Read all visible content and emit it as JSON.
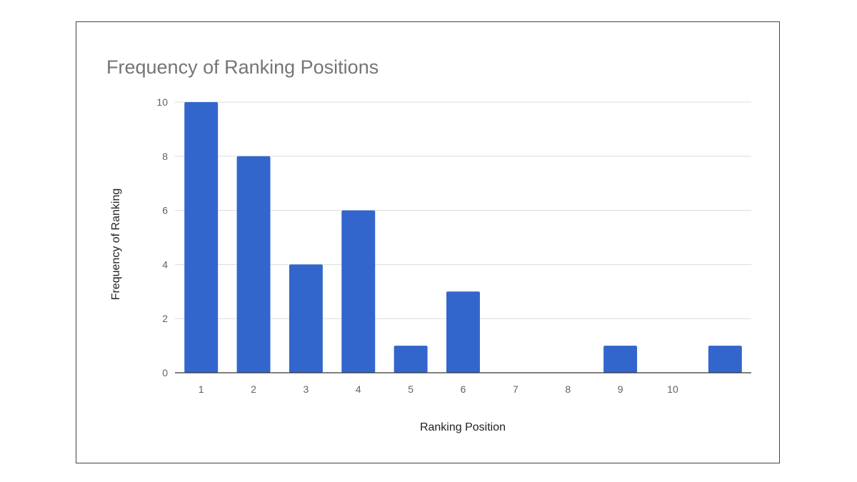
{
  "chart_data": {
    "type": "bar",
    "title": "Frequency of Ranking Positions",
    "xlabel": "Ranking Position",
    "ylabel": "Frequency of Ranking",
    "x_tick_labels": [
      "1",
      "2",
      "3",
      "4",
      "5",
      "6",
      "7",
      "8",
      "9",
      "10",
      ""
    ],
    "values": [
      10,
      8,
      4,
      6,
      1,
      3,
      0,
      0,
      1,
      0,
      1
    ],
    "y_ticks": [
      "0",
      "2",
      "4",
      "6",
      "8",
      "10"
    ],
    "ylim": [
      0,
      10
    ],
    "grid": true,
    "legend": "none",
    "bar_color": "#3366cc"
  }
}
